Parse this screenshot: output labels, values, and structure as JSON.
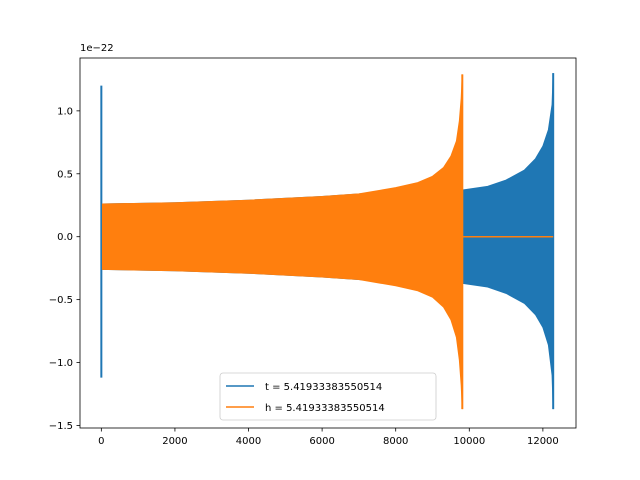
{
  "chart_data": {
    "type": "line",
    "title": "",
    "xlabel": "",
    "ylabel": "",
    "y_offset_label": "1e−22",
    "xlim": [
      -580,
      12900
    ],
    "ylim": [
      -1.52,
      1.42
    ],
    "x_ticks": [
      0,
      2000,
      4000,
      6000,
      8000,
      10000,
      12000
    ],
    "x_tick_labels": [
      "0",
      "2000",
      "4000",
      "6000",
      "8000",
      "10000",
      "12000"
    ],
    "y_ticks": [
      -1.5,
      -1.0,
      -0.5,
      0.0,
      0.5,
      1.0
    ],
    "y_tick_labels": [
      "−1.5",
      "−1.0",
      "−0.5",
      "0.0",
      "0.5",
      "1.0"
    ],
    "grid": false,
    "legend_position": "lower-center",
    "series": [
      {
        "name": "t = 5.41933383550514",
        "color": "#1f77b4",
        "spike": {
          "x": 0,
          "y_max": 1.2,
          "y_min": -1.12
        },
        "envelope": {
          "x": [
            30,
            2000,
            4000,
            6000,
            8000,
            9000,
            9800,
            10500,
            11000,
            11500,
            11800,
            12000,
            12150,
            12250,
            12280
          ],
          "y_upper": [
            0.26,
            0.27,
            0.29,
            0.32,
            0.36,
            0.38,
            0.37,
            0.4,
            0.45,
            0.53,
            0.62,
            0.72,
            0.85,
            1.05,
            1.3
          ],
          "y_lower": [
            -0.26,
            -0.27,
            -0.29,
            -0.32,
            -0.36,
            -0.38,
            -0.37,
            -0.4,
            -0.45,
            -0.53,
            -0.62,
            -0.72,
            -0.86,
            -1.1,
            -1.37
          ]
        }
      },
      {
        "name": "h = 5.41933383550514",
        "color": "#ff7f0e",
        "envelope": {
          "x": [
            30,
            2000,
            4000,
            6000,
            7000,
            8000,
            8600,
            9000,
            9300,
            9500,
            9650,
            9730,
            9780,
            9810
          ],
          "y_upper": [
            0.26,
            0.27,
            0.29,
            0.32,
            0.34,
            0.39,
            0.43,
            0.48,
            0.55,
            0.64,
            0.76,
            0.92,
            1.1,
            1.29
          ],
          "y_lower": [
            -0.26,
            -0.27,
            -0.29,
            -0.32,
            -0.34,
            -0.39,
            -0.43,
            -0.48,
            -0.56,
            -0.66,
            -0.8,
            -0.98,
            -1.18,
            -1.37
          ]
        },
        "flat": {
          "x_start": 9810,
          "x_end": 12280,
          "y": 0.0
        }
      }
    ]
  }
}
